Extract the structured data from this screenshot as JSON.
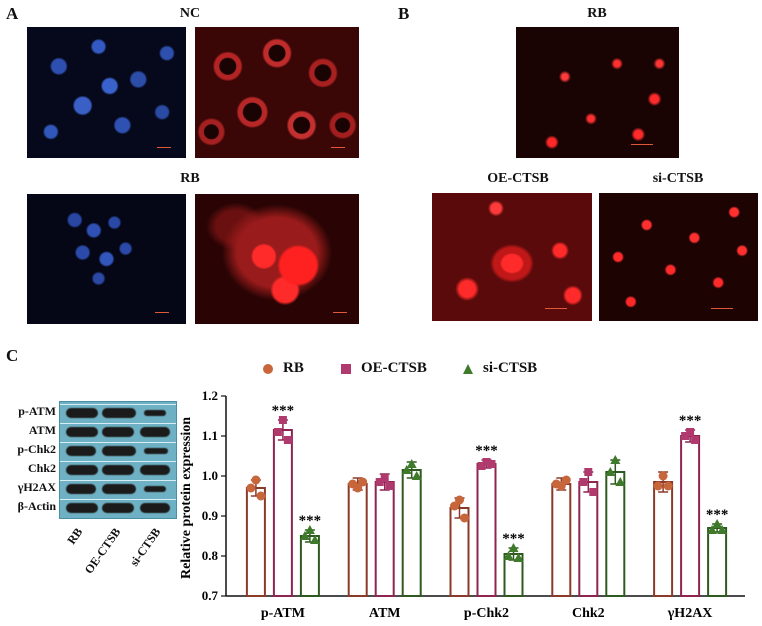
{
  "panels": {
    "A": {
      "letter": "A",
      "top_label": "NC",
      "bottom_label": "RB"
    },
    "B": {
      "letter": "B",
      "top_label": "RB",
      "left_label": "OE-CTSB",
      "right_label": "si-CTSB"
    },
    "C": {
      "letter": "C",
      "blot_rows": [
        "p-ATM",
        "ATM",
        "p-Chk2",
        "Chk2",
        "γH2AX",
        "β-Actin"
      ],
      "blot_lanes": [
        "RB",
        "OE-CTSB",
        "si-CTSB"
      ]
    }
  },
  "colors": {
    "RB": "#8b3a2a",
    "OE-CTSB": "#8e2450",
    "si-CTSB": "#2f5a1f",
    "RB_marker": "#c8663b",
    "OE_marker": "#b03a6e",
    "si_marker": "#3f7a2a",
    "blot_background": "#6fb1c4"
  },
  "chart_data": {
    "type": "bar",
    "ylabel": "Relative protein expression",
    "ylim": [
      0.7,
      1.2
    ],
    "yticks": [
      "0.7",
      "0.8",
      "0.9",
      "1.0",
      "1.1",
      "1.2"
    ],
    "categories": [
      "p-ATM",
      "ATM",
      "p-Chk2",
      "Chk2",
      "γH2AX"
    ],
    "legend_position": "top",
    "series": [
      {
        "name": "RB",
        "marker": "circle",
        "values": [
          0.97,
          0.98,
          0.92,
          0.98,
          0.985
        ],
        "errors": [
          0.02,
          0.015,
          0.025,
          0.015,
          0.025
        ],
        "points": [
          [
            0.99,
            0.97,
            0.95
          ],
          [
            0.97,
            0.98,
            0.985
          ],
          [
            0.94,
            0.925,
            0.895
          ],
          [
            0.975,
            0.98,
            0.99
          ],
          [
            1.0,
            0.975,
            0.975
          ]
        ],
        "significance": [
          "",
          "",
          "",
          "",
          ""
        ]
      },
      {
        "name": "OE-CTSB",
        "marker": "square",
        "values": [
          1.115,
          0.985,
          1.03,
          0.985,
          1.1
        ],
        "errors": [
          0.025,
          0.02,
          0.01,
          0.025,
          0.015
        ],
        "points": [
          [
            1.14,
            1.11,
            1.09
          ],
          [
            0.995,
            0.985,
            0.975
          ],
          [
            1.035,
            1.025,
            1.03
          ],
          [
            1.01,
            0.985,
            0.96
          ],
          [
            1.11,
            1.1,
            1.09
          ]
        ],
        "significance": [
          "***",
          "",
          "***",
          "",
          "***"
        ]
      },
      {
        "name": "si-CTSB",
        "marker": "triangle",
        "values": [
          0.85,
          1.015,
          0.805,
          1.01,
          0.87
        ],
        "errors": [
          0.015,
          0.02,
          0.015,
          0.03,
          0.01
        ],
        "points": [
          [
            0.865,
            0.85,
            0.84
          ],
          [
            1.03,
            1.015,
            1.0
          ],
          [
            0.82,
            0.8,
            0.795
          ],
          [
            1.04,
            1.01,
            0.985
          ],
          [
            0.88,
            0.865,
            0.865
          ]
        ],
        "significance": [
          "***",
          "",
          "***",
          "",
          "***"
        ]
      }
    ]
  }
}
